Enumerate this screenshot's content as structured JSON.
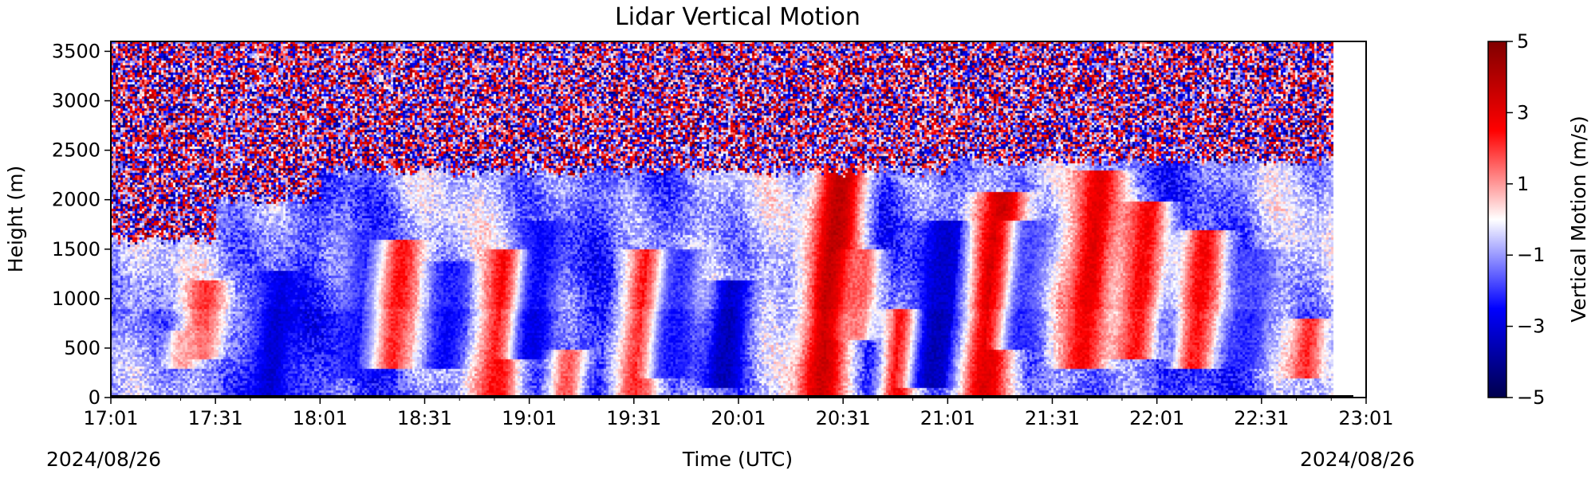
{
  "chart_data": {
    "type": "heatmap",
    "title": "Lidar Vertical Motion",
    "xlabel": "Time (UTC)",
    "ylabel": "Height (m)",
    "x_start_date": "2024/08/26",
    "x_end_date": "2024/08/26",
    "x_range": [
      "17:01",
      "23:01"
    ],
    "x_ticks": [
      "17:01",
      "17:31",
      "18:01",
      "18:31",
      "19:01",
      "19:31",
      "20:01",
      "20:31",
      "21:01",
      "21:31",
      "22:01",
      "22:31",
      "23:01"
    ],
    "ylim": [
      0,
      3600
    ],
    "y_ticks": [
      0,
      500,
      1000,
      1500,
      2000,
      2500,
      3000,
      3500
    ],
    "colorbar": {
      "label": "Vertical Motion (m/s)",
      "range": [
        -5,
        5
      ],
      "ticks": [
        5,
        3,
        1,
        -1,
        -3,
        -5
      ],
      "tick_labels": [
        "5",
        "3",
        "1",
        "−1",
        "−3",
        "−5"
      ],
      "colormap": "seismic",
      "colors": [
        "#00004c",
        "#0000ff",
        "#ffffff",
        "#ff0000",
        "#800000"
      ]
    },
    "data_extent": [
      "17:01",
      "22:51"
    ],
    "noise_above_boundary_layer": true,
    "boundary_layer_top_m": [
      1600,
      2000,
      2300,
      2300,
      2300,
      2300,
      2300,
      2300,
      2400,
      2400,
      2400,
      2400
    ],
    "plumes": [
      {
        "time": "17:26",
        "base_m": 400,
        "top_m": 1200,
        "w": 2.0
      },
      {
        "time": "17:21",
        "base_m": 300,
        "top_m": 700,
        "w": 1.2
      },
      {
        "time": "17:46",
        "base_m": 0,
        "top_m": 1300,
        "w": -2.8
      },
      {
        "time": "18:11",
        "base_m": 200,
        "top_m": 1700,
        "w": -2.0
      },
      {
        "time": "18:21",
        "base_m": 300,
        "top_m": 1600,
        "w": 2.4
      },
      {
        "time": "18:36",
        "base_m": 300,
        "top_m": 1400,
        "w": -2.2
      },
      {
        "time": "18:51",
        "base_m": 0,
        "top_m": 1500,
        "w": 2.8
      },
      {
        "time": "19:01",
        "base_m": 400,
        "top_m": 1800,
        "w": -2.5
      },
      {
        "time": "19:11",
        "base_m": 0,
        "top_m": 500,
        "w": 2.0
      },
      {
        "time": "19:31",
        "base_m": 0,
        "top_m": 1500,
        "w": 2.4
      },
      {
        "time": "19:41",
        "base_m": 200,
        "top_m": 1500,
        "w": -2.0
      },
      {
        "time": "19:56",
        "base_m": 100,
        "top_m": 1200,
        "w": -3.2
      },
      {
        "time": "20:24",
        "base_m": 0,
        "top_m": 2400,
        "w": 3.8
      },
      {
        "time": "20:34",
        "base_m": 600,
        "top_m": 1500,
        "w": 1.6
      },
      {
        "time": "20:46",
        "base_m": 0,
        "top_m": 900,
        "w": 3.0
      },
      {
        "time": "20:56",
        "base_m": 100,
        "top_m": 1800,
        "w": -3.2
      },
      {
        "time": "21:11",
        "base_m": 0,
        "top_m": 2100,
        "w": 3.4
      },
      {
        "time": "21:21",
        "base_m": 500,
        "top_m": 1800,
        "w": -1.8
      },
      {
        "time": "21:39",
        "base_m": 300,
        "top_m": 2300,
        "w": 3.0
      },
      {
        "time": "21:54",
        "base_m": 400,
        "top_m": 2000,
        "w": 2.6
      },
      {
        "time": "22:11",
        "base_m": 300,
        "top_m": 1700,
        "w": 2.6
      },
      {
        "time": "22:26",
        "base_m": 300,
        "top_m": 1500,
        "w": -1.8
      },
      {
        "time": "22:43",
        "base_m": 200,
        "top_m": 800,
        "w": 2.4
      }
    ]
  }
}
